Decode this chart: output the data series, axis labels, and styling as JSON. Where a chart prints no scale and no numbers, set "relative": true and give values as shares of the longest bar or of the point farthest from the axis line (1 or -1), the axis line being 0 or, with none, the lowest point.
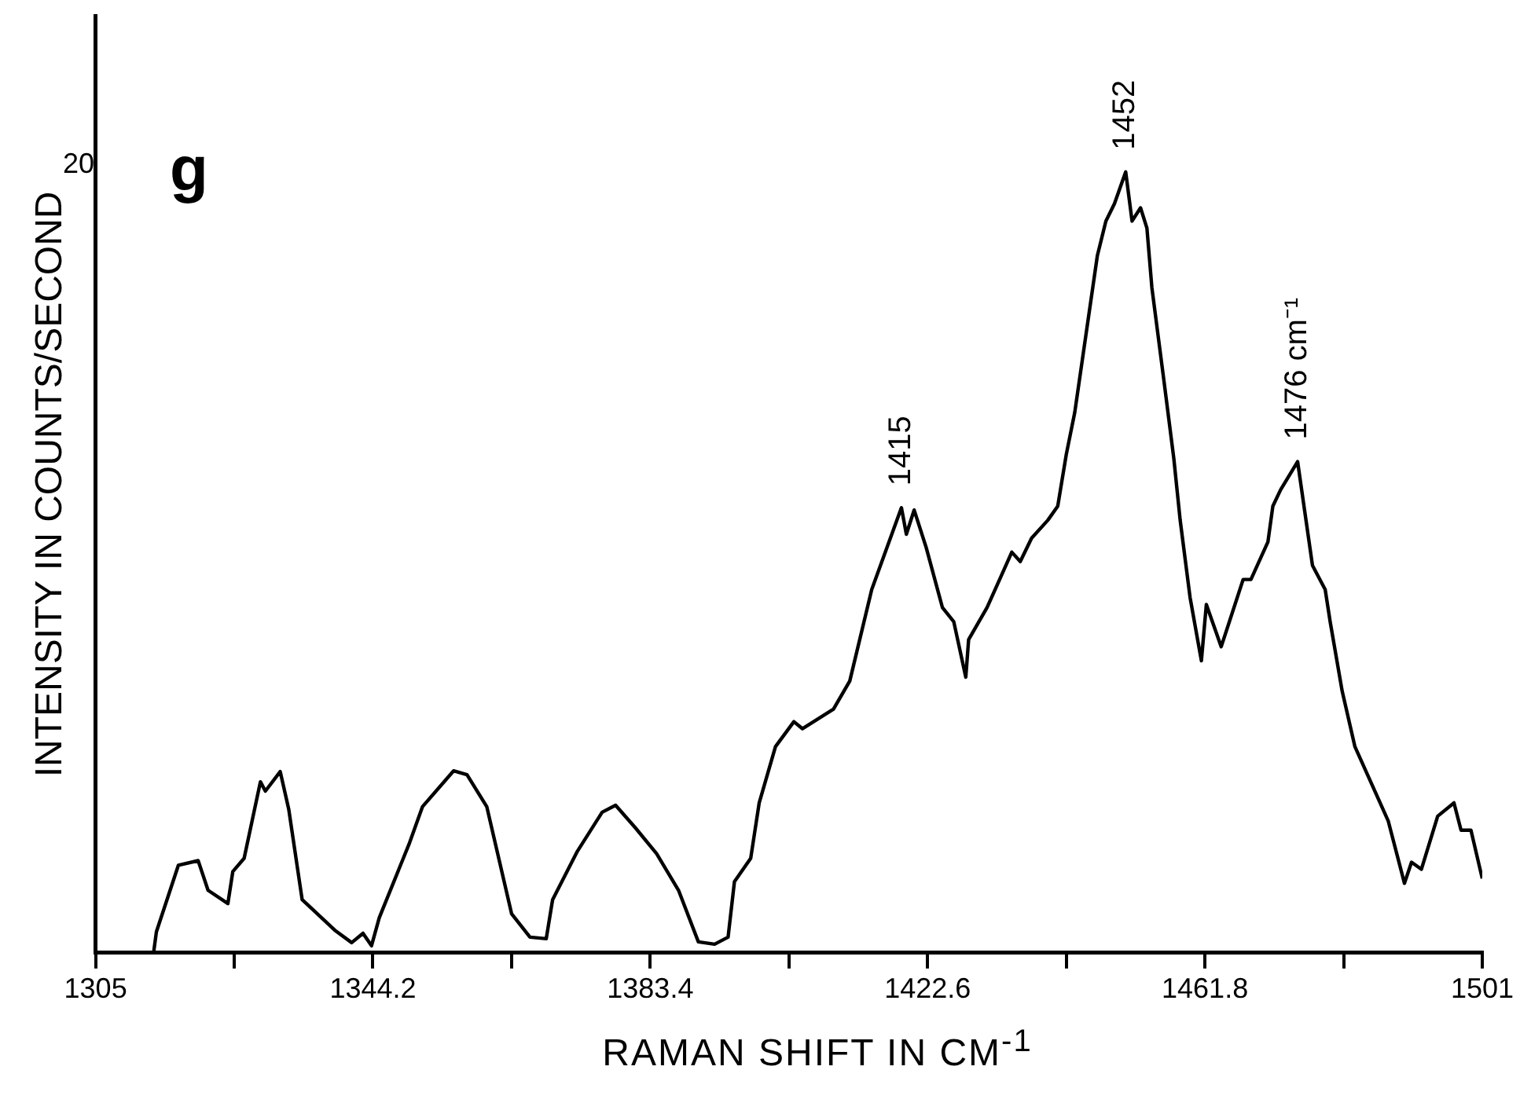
{
  "chart_data": {
    "type": "line",
    "xlabel": "RAMAN SHIFT IN CM$^{-1}$",
    "ylabel": "INTENSITY IN COUNTS/SECOND",
    "x": [
      1313.2,
      1313.6,
      1316.7,
      1319.5,
      1320.9,
      1323.7,
      1324.4,
      1326.0,
      1328.3,
      1329.0,
      1331.1,
      1332.3,
      1334.2,
      1338.8,
      1341.2,
      1342.8,
      1344.0,
      1345.1,
      1349.3,
      1351.2,
      1355.6,
      1357.5,
      1360.3,
      1363.8,
      1366.4,
      1368.7,
      1369.6,
      1373.1,
      1376.6,
      1378.5,
      1381.3,
      1384.3,
      1387.4,
      1390.2,
      1392.5,
      1394.4,
      1395.3,
      1397.6,
      1398.8,
      1401.1,
      1403.7,
      1404.9,
      1409.3,
      1411.6,
      1414.7,
      1418.9,
      1419.6,
      1420.7,
      1422.4,
      1424.7,
      1426.3,
      1428.0,
      1428.4,
      1431.0,
      1434.5,
      1435.7,
      1437.3,
      1439.6,
      1441.0,
      1442.2,
      1443.4,
      1446.6,
      1447.8,
      1449.0,
      1450.6,
      1451.5,
      1452.7,
      1453.6,
      1454.3,
      1456.0,
      1457.4,
      1458.3,
      1459.7,
      1461.3,
      1462.0,
      1464.1,
      1467.2,
      1468.3,
      1470.7,
      1471.4,
      1472.5,
      1474.9,
      1477.0,
      1478.8,
      1479.5,
      1481.2,
      1483.0,
      1487.7,
      1490.0,
      1491.0,
      1492.4,
      1494.7,
      1497.0,
      1498.0,
      1499.4,
      1501.0
    ],
    "series": [
      {
        "color": "#000000",
        "values": [
          0,
          0.027,
          0.112,
          0.118,
          0.08,
          0.063,
          0.104,
          0.121,
          0.219,
          0.207,
          0.232,
          0.184,
          0.068,
          0.029,
          0.013,
          0.025,
          0.009,
          0.045,
          0.139,
          0.187,
          0.233,
          0.228,
          0.187,
          0.05,
          0.02,
          0.018,
          0.068,
          0.13,
          0.18,
          0.189,
          0.16,
          0.127,
          0.08,
          0.014,
          0.011,
          0.02,
          0.091,
          0.121,
          0.192,
          0.264,
          0.296,
          0.287,
          0.312,
          0.348,
          0.465,
          0.57,
          0.536,
          0.567,
          0.519,
          0.442,
          0.424,
          0.353,
          0.401,
          0.442,
          0.513,
          0.501,
          0.531,
          0.554,
          0.572,
          0.638,
          0.692,
          0.893,
          0.937,
          0.959,
          1,
          0.937,
          0.954,
          0.928,
          0.852,
          0.733,
          0.633,
          0.554,
          0.455,
          0.374,
          0.446,
          0.392,
          0.478,
          0.478,
          0.526,
          0.572,
          0.593,
          0.629,
          0.496,
          0.465,
          0.424,
          0.335,
          0.264,
          0.169,
          0.089,
          0.116,
          0.107,
          0.175,
          0.192,
          0.157,
          0.157,
          0.095
        ]
      }
    ],
    "relative": true,
    "xlim": [
      1305,
      1501
    ],
    "xticks": [
      1305,
      {
        "value": 1324.6,
        "label": null
      },
      1344.2,
      {
        "value": 1363.8,
        "label": null
      },
      1383.4,
      {
        "value": 1403,
        "label": null
      },
      1422.6,
      {
        "value": 1442.2,
        "label": null
      },
      1461.8,
      {
        "value": 1481.4,
        "label": null
      },
      1501
    ],
    "grid": false,
    "legend": false,
    "marker": "none",
    "line_style": "solid",
    "annotations": [
      "20",
      "g",
      {
        "text": "1415",
        "x": 1418.9,
        "y": 0.57
      },
      {
        "text": "1452",
        "x": 1450.6,
        "y": 1
      },
      {
        "text": "1476 cm⁻¹",
        "x": 1474.9,
        "y": 0.629
      }
    ]
  }
}
